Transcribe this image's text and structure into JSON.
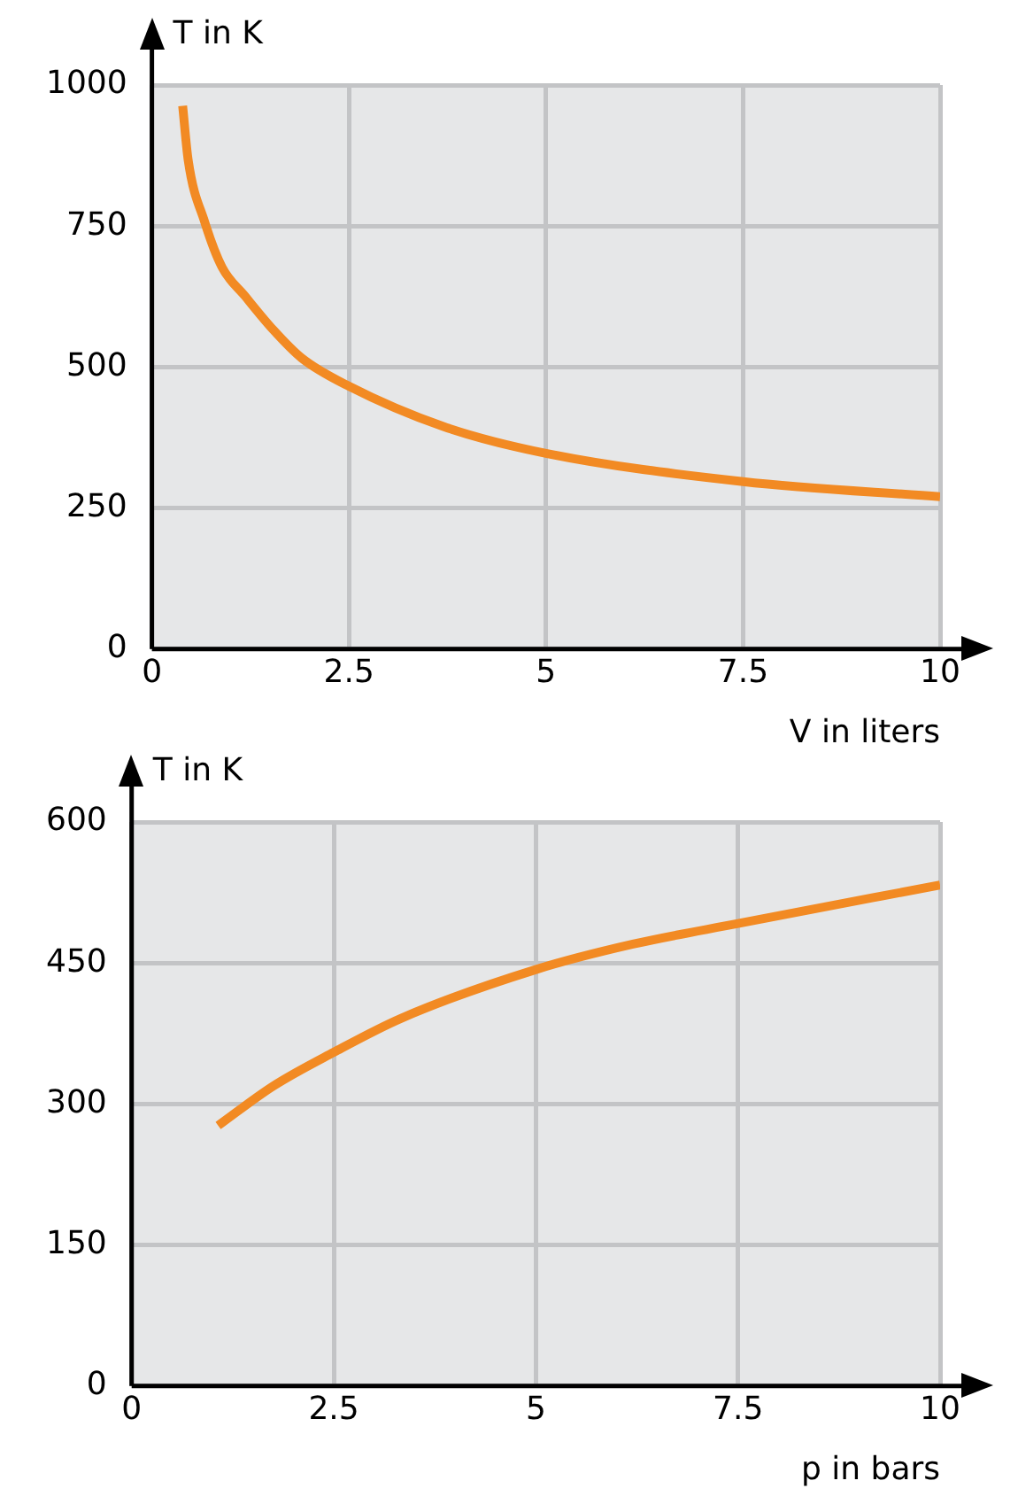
{
  "chart_data": [
    {
      "type": "line",
      "xlabel": "V in liters",
      "ylabel": "T in K",
      "color": "#f28a23",
      "marker": "none",
      "grid": true,
      "xlim": [
        0,
        10
      ],
      "ylim": [
        0,
        1000
      ],
      "xticks": [
        0,
        2.5,
        5,
        7.5,
        10
      ],
      "yticks": [
        0,
        250,
        500,
        750,
        1000
      ],
      "x": [
        0.39,
        0.46,
        0.67,
        0.89,
        1.18,
        1.54,
        1.9,
        2.5,
        3.69,
        5,
        7.5,
        10
      ],
      "values": [
        963,
        867,
        757,
        677,
        626,
        566,
        516,
        466,
        395,
        347,
        297,
        270
      ]
    },
    {
      "type": "line",
      "xlabel": "p in bars",
      "ylabel": "T in K",
      "color": "#f28a23",
      "marker": "none",
      "grid": true,
      "xlim": [
        0,
        10
      ],
      "ylim": [
        0,
        600
      ],
      "xticks": [
        0,
        2.5,
        5,
        7.5,
        10
      ],
      "yticks": [
        0,
        150,
        300,
        450,
        600
      ],
      "x": [
        1.07,
        1.75,
        2.5,
        3.33,
        5,
        6.2,
        7.5,
        10
      ],
      "values": [
        277,
        319,
        355,
        391,
        443,
        470,
        492,
        533
      ]
    }
  ]
}
